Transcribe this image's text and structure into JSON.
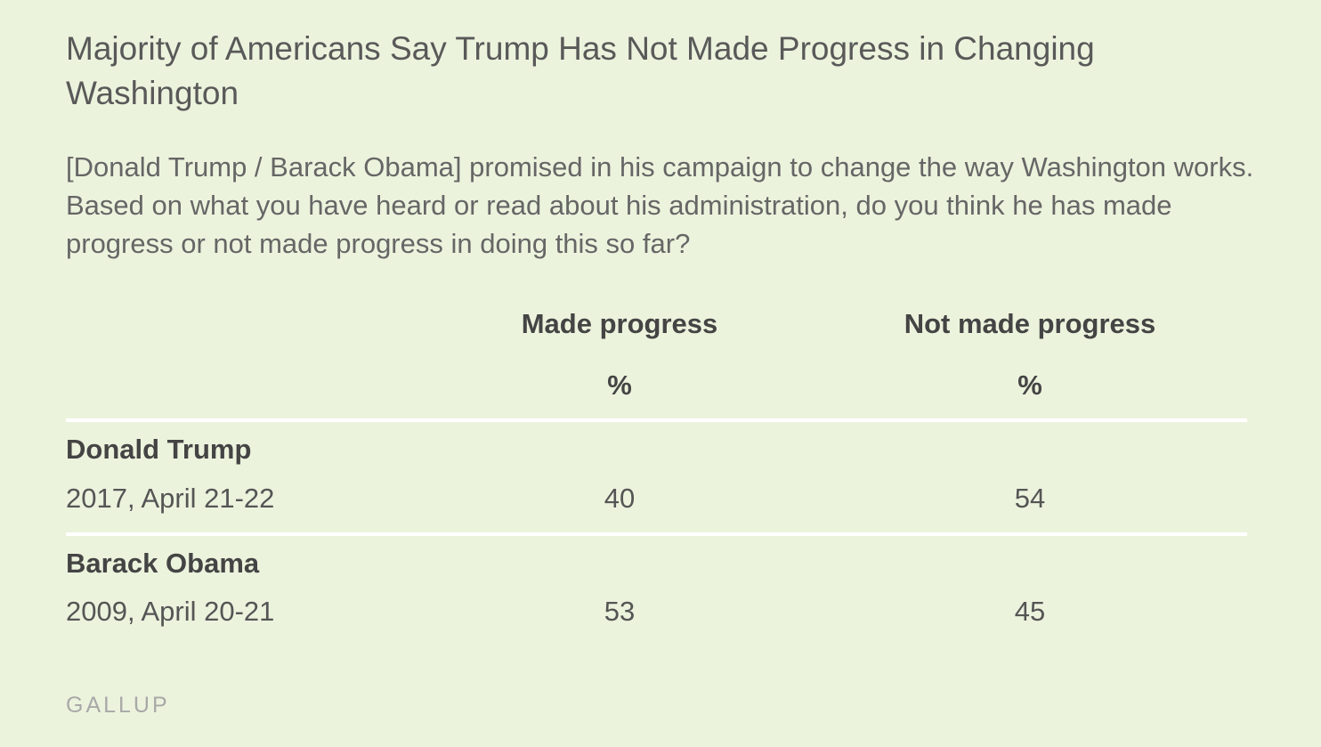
{
  "title": "Majority of Americans Say Trump Has Not Made Progress in Changing Washington",
  "subtitle": "[Donald Trump / Barack Obama] promised in his campaign to change the way Washington works. Based on what you have heard or read about his administration, do you think he has made progress or not made progress in doing this so far?",
  "source": "GALLUP",
  "chart_data": {
    "type": "table",
    "columns": [
      {
        "label": "Made progress",
        "unit": "%"
      },
      {
        "label": "Not made progress",
        "unit": "%"
      }
    ],
    "rows": [
      {
        "name": "Donald Trump",
        "date": "2017, April 21-22",
        "values": [
          "40",
          "54"
        ]
      },
      {
        "name": "Barack Obama",
        "date": "2009, April 20-21",
        "values": [
          "53",
          "45"
        ]
      }
    ]
  },
  "colors": {
    "background": "#ecf3dd",
    "rule": "#ffffff",
    "text": "#555555"
  }
}
